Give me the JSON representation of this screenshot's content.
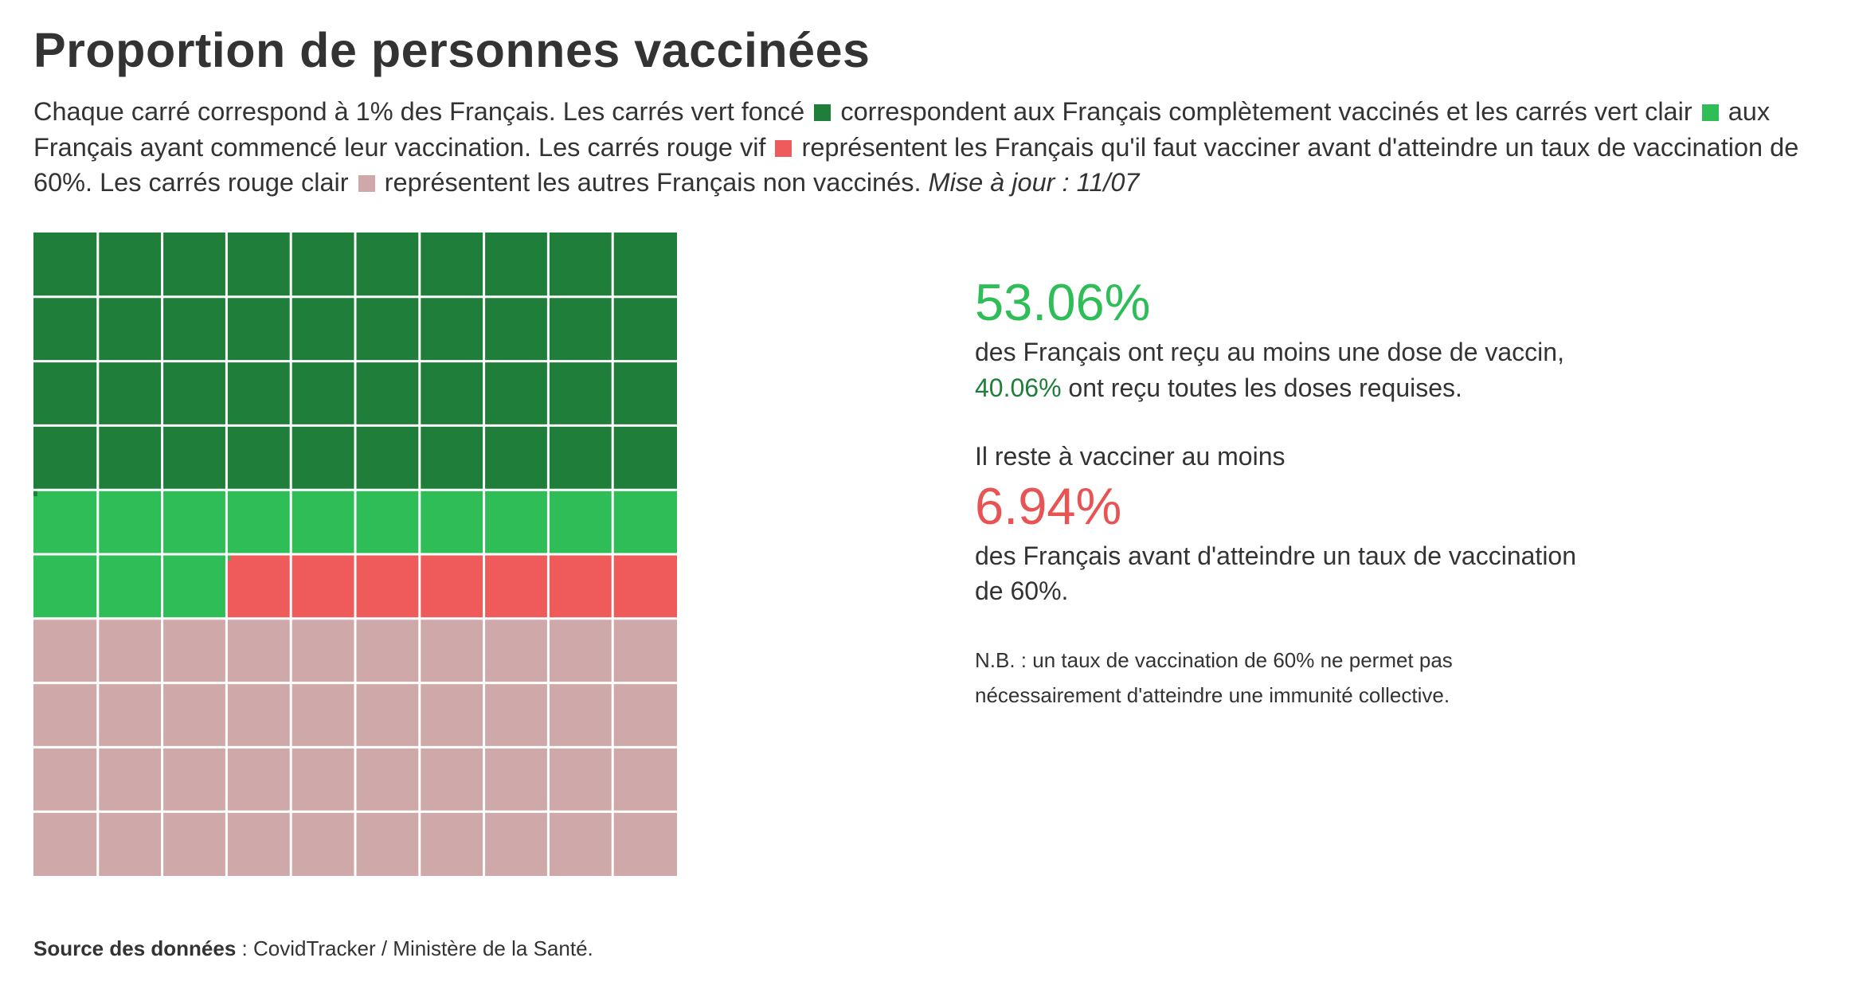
{
  "title": "Proportion de personnes vaccinées",
  "description": {
    "p1": "Chaque carré correspond à 1% des Français. Les carrés vert foncé",
    "p2": "correspondent aux Français complètement vaccinés et les carrés vert clair",
    "p3": "aux Français ayant commencé leur vaccination. Les carrés rouge vif",
    "p4": "représentent les Français qu'il faut vacciner avant d'atteindre un taux de vaccination de 60%. Les carrés rouge clair",
    "p5": "représentent les autres Français non vaccinés.",
    "update": "Mise à jour : 11/07"
  },
  "colors": {
    "fully_vaccinated": "#1e7e3a",
    "partially_vaccinated": "#2ebd57",
    "to_vaccinate": "#ef5b5b",
    "other_unvaccinated": "#cfa9a9",
    "text": "#333333"
  },
  "chart_data": {
    "type": "waffle",
    "grid": {
      "columns": 10,
      "rows": 10,
      "unit_percent": 1
    },
    "order": "row-major from top-left",
    "segments": [
      {
        "name": "complètement vaccinés",
        "value": 40.06,
        "color": "#1e7e3a"
      },
      {
        "name": "ayant commencé leur vaccination",
        "value": 13.0,
        "color": "#2ebd57"
      },
      {
        "name": "à vacciner avant 60%",
        "value": 6.94,
        "color": "#ef5b5b"
      },
      {
        "name": "autres non vaccinés",
        "value": 40.0,
        "color": "#cfa9a9"
      }
    ]
  },
  "stats": {
    "at_least_one_dose": "53.06%",
    "text1": "des Français ont reçu au moins une dose de vaccin,",
    "fully": "40.06%",
    "text2": "ont reçu toutes les doses requises.",
    "remaining_label": "Il reste à vacciner au moins",
    "remaining": "6.94%",
    "text3": "des Français avant d'atteindre un taux de vaccination de 60%.",
    "note": "N.B. : un taux de vaccination de 60% ne permet pas nécessairement d'atteindre une immunité collective."
  },
  "source": {
    "label": "Source des données",
    "text": " : CovidTracker / Ministère de la Santé."
  }
}
